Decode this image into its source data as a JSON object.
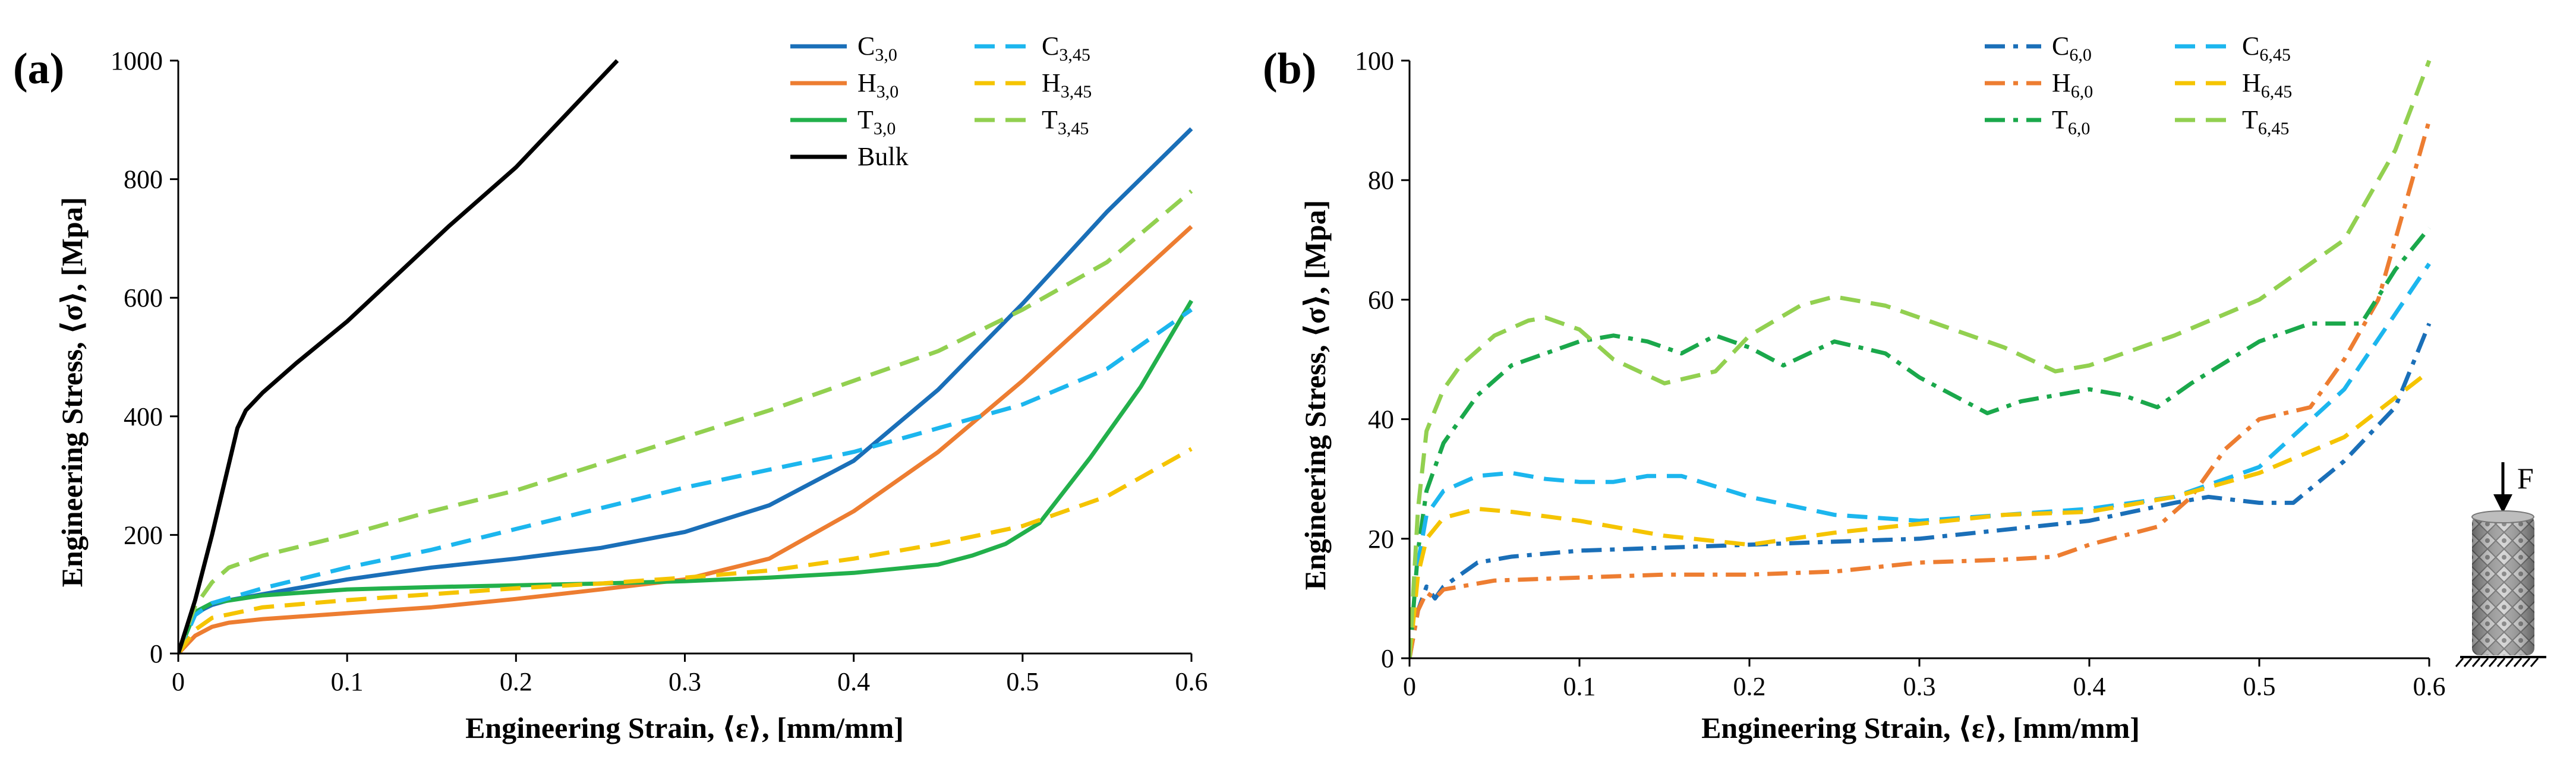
{
  "chart_data": [
    {
      "type": "line",
      "panel_label": "(a)",
      "xlabel": "Engineering Strain, ⟨ε⟩, [mm/mm]",
      "ylabel": "Engineering Stress, ⟨σ⟩, [Mpa]",
      "xlim": [
        0,
        0.6
      ],
      "ylim": [
        0,
        1000
      ],
      "xticks": [
        0,
        0.1,
        0.2,
        0.3,
        0.4,
        0.5,
        0.6
      ],
      "xtick_labels": [
        "0",
        "0.1",
        "0.2",
        "0.3",
        "0.4",
        "0.5",
        "0.6"
      ],
      "yticks": [
        0,
        200,
        400,
        600,
        800,
        1000
      ],
      "ytick_labels": [
        "0",
        "200",
        "400",
        "600",
        "800",
        "1000"
      ],
      "grid": false,
      "legend_position": "top-right",
      "series": [
        {
          "name": "C3,0",
          "label_main": "C",
          "label_sub": "3,0",
          "color": "#1a6fb8",
          "style": "solid",
          "x": [
            0,
            0.005,
            0.01,
            0.015,
            0.02,
            0.03,
            0.05,
            0.1,
            0.15,
            0.2,
            0.25,
            0.3,
            0.35,
            0.4,
            0.45,
            0.5,
            0.55,
            0.6
          ],
          "y": [
            0,
            40,
            65,
            75,
            82,
            90,
            100,
            125,
            145,
            160,
            178,
            205,
            250,
            325,
            445,
            590,
            745,
            885
          ]
        },
        {
          "name": "H3,0",
          "label_main": "H",
          "label_sub": "3,0",
          "color": "#ed7d31",
          "style": "solid",
          "x": [
            0,
            0.01,
            0.02,
            0.03,
            0.05,
            0.1,
            0.15,
            0.2,
            0.25,
            0.3,
            0.35,
            0.4,
            0.45,
            0.5,
            0.55,
            0.6
          ],
          "y": [
            0,
            30,
            45,
            52,
            58,
            68,
            78,
            92,
            108,
            125,
            160,
            240,
            340,
            460,
            590,
            720
          ]
        },
        {
          "name": "T3,0",
          "label_main": "T",
          "label_sub": "3,0",
          "color": "#22b04b",
          "style": "solid",
          "x": [
            0,
            0.01,
            0.02,
            0.05,
            0.1,
            0.15,
            0.2,
            0.25,
            0.3,
            0.35,
            0.4,
            0.45,
            0.47,
            0.49,
            0.51,
            0.54,
            0.57,
            0.6
          ],
          "y": [
            0,
            70,
            85,
            98,
            108,
            112,
            115,
            118,
            122,
            128,
            136,
            150,
            165,
            185,
            220,
            330,
            450,
            595
          ]
        },
        {
          "name": "C3,45",
          "label_main": "C",
          "label_sub": "3,45",
          "color": "#1cb6ee",
          "style": "dashed",
          "x": [
            0,
            0.01,
            0.02,
            0.05,
            0.1,
            0.15,
            0.2,
            0.25,
            0.3,
            0.35,
            0.4,
            0.45,
            0.5,
            0.55,
            0.6
          ],
          "y": [
            0,
            65,
            85,
            110,
            145,
            175,
            210,
            245,
            280,
            310,
            340,
            380,
            420,
            480,
            580
          ]
        },
        {
          "name": "H3,45",
          "label_main": "H",
          "label_sub": "3,45",
          "color": "#f5c400",
          "style": "dashed",
          "x": [
            0,
            0.01,
            0.02,
            0.05,
            0.1,
            0.15,
            0.2,
            0.25,
            0.3,
            0.35,
            0.4,
            0.45,
            0.5,
            0.55,
            0.6
          ],
          "y": [
            0,
            40,
            60,
            78,
            90,
            100,
            110,
            118,
            128,
            140,
            160,
            185,
            215,
            265,
            345
          ]
        },
        {
          "name": "T3,45",
          "label_main": "T",
          "label_sub": "3,45",
          "color": "#92d050",
          "style": "dashed",
          "x": [
            0,
            0.01,
            0.02,
            0.03,
            0.05,
            0.1,
            0.15,
            0.2,
            0.25,
            0.3,
            0.35,
            0.4,
            0.45,
            0.5,
            0.55,
            0.6
          ],
          "y": [
            0,
            80,
            120,
            145,
            165,
            200,
            240,
            275,
            320,
            365,
            410,
            460,
            510,
            580,
            660,
            780
          ]
        },
        {
          "name": "Bulk",
          "label_main": "Bulk",
          "label_sub": "",
          "color": "#000000",
          "style": "solid",
          "x": [
            0,
            0.01,
            0.02,
            0.03,
            0.035,
            0.04,
            0.05,
            0.07,
            0.1,
            0.13,
            0.16,
            0.2,
            0.23,
            0.26
          ],
          "y": [
            0,
            90,
            200,
            320,
            380,
            410,
            440,
            490,
            560,
            640,
            720,
            820,
            910,
            1000
          ]
        }
      ]
    },
    {
      "type": "line",
      "panel_label": "(b)",
      "xlabel": "Engineering Strain, ⟨ε⟩, [mm/mm]",
      "ylabel": "Engineering Stress, ⟨σ⟩, [Mpa]",
      "xlim": [
        0,
        0.6
      ],
      "ylim": [
        0,
        100
      ],
      "xticks": [
        0,
        0.1,
        0.2,
        0.3,
        0.4,
        0.5,
        0.6
      ],
      "xtick_labels": [
        "0",
        "0.1",
        "0.2",
        "0.3",
        "0.4",
        "0.5",
        "0.6"
      ],
      "yticks": [
        0,
        20,
        40,
        60,
        80,
        100
      ],
      "ytick_labels": [
        "0",
        "20",
        "40",
        "60",
        "80",
        "100"
      ],
      "grid": false,
      "legend_position": "top-right",
      "series": [
        {
          "name": "C6,0",
          "label_main": "C",
          "label_sub": "6,0",
          "color": "#1a6fb8",
          "style": "dashdot",
          "x": [
            0,
            0.005,
            0.01,
            0.015,
            0.02,
            0.04,
            0.06,
            0.1,
            0.15,
            0.2,
            0.25,
            0.3,
            0.35,
            0.4,
            0.45,
            0.47,
            0.5,
            0.52,
            0.55,
            0.58,
            0.6
          ],
          "y": [
            0,
            8,
            12,
            10,
            12,
            16,
            17,
            18,
            18.5,
            19,
            19.5,
            20,
            21.5,
            23,
            26,
            27,
            26,
            26,
            33,
            42,
            56
          ]
        },
        {
          "name": "H6,0",
          "label_main": "H",
          "label_sub": "6,0",
          "color": "#ed7d31",
          "style": "dashdot",
          "x": [
            0,
            0.005,
            0.01,
            0.015,
            0.02,
            0.05,
            0.1,
            0.15,
            0.2,
            0.25,
            0.3,
            0.35,
            0.38,
            0.4,
            0.44,
            0.46,
            0.48,
            0.5,
            0.53,
            0.55,
            0.57,
            0.59,
            0.6
          ],
          "y": [
            0,
            8,
            11,
            10,
            11.5,
            13,
            13.5,
            14,
            14,
            14.5,
            16,
            16.5,
            17,
            19,
            22,
            27,
            35,
            40,
            42,
            50,
            60,
            80,
            90
          ]
        },
        {
          "name": "T6,0",
          "label_main": "T",
          "label_sub": "6,0",
          "color": "#1aa84b",
          "style": "dashdot",
          "x": [
            0,
            0.005,
            0.01,
            0.02,
            0.04,
            0.06,
            0.08,
            0.1,
            0.12,
            0.14,
            0.16,
            0.18,
            0.2,
            0.22,
            0.25,
            0.28,
            0.3,
            0.34,
            0.36,
            0.38,
            0.4,
            0.42,
            0.44,
            0.46,
            0.5,
            0.53,
            0.56,
            0.58,
            0.6
          ],
          "y": [
            0,
            18,
            28,
            36,
            44,
            49,
            51,
            53,
            54,
            53,
            51,
            54,
            52,
            49,
            53,
            51,
            47,
            41,
            43,
            44,
            45,
            44,
            42,
            46,
            53,
            56,
            56,
            65,
            72
          ]
        },
        {
          "name": "C6,45",
          "label_main": "C",
          "label_sub": "6,45",
          "color": "#1cb6ee",
          "style": "dashed",
          "x": [
            0,
            0.005,
            0.01,
            0.02,
            0.04,
            0.06,
            0.08,
            0.1,
            0.12,
            0.14,
            0.16,
            0.2,
            0.25,
            0.3,
            0.35,
            0.4,
            0.45,
            0.5,
            0.55,
            0.6
          ],
          "y": [
            0,
            16,
            24,
            28,
            30.5,
            31,
            30,
            29.5,
            29.5,
            30.5,
            30.5,
            27,
            24,
            23,
            24,
            25,
            27,
            32,
            45,
            66
          ]
        },
        {
          "name": "H6,45",
          "label_main": "H",
          "label_sub": "6,45",
          "color": "#f5c400",
          "style": "dashed",
          "x": [
            0,
            0.005,
            0.01,
            0.02,
            0.04,
            0.06,
            0.1,
            0.15,
            0.2,
            0.25,
            0.3,
            0.35,
            0.4,
            0.45,
            0.5,
            0.55,
            0.6
          ],
          "y": [
            0,
            14,
            20,
            23.5,
            25,
            24.5,
            23,
            20.5,
            19,
            21,
            22.5,
            24,
            24.5,
            27,
            31,
            37,
            48
          ]
        },
        {
          "name": "T6,45",
          "label_main": "T",
          "label_sub": "6,45",
          "color": "#92d050",
          "style": "dashed",
          "x": [
            0,
            0.005,
            0.01,
            0.02,
            0.03,
            0.05,
            0.07,
            0.08,
            0.1,
            0.12,
            0.15,
            0.18,
            0.2,
            0.23,
            0.25,
            0.28,
            0.3,
            0.35,
            0.38,
            0.4,
            0.45,
            0.5,
            0.55,
            0.58,
            0.6
          ],
          "y": [
            0,
            25,
            38,
            45,
            49,
            54,
            56.5,
            57,
            55,
            50,
            46,
            48,
            54,
            59,
            60.5,
            59,
            57,
            52,
            48,
            49,
            54,
            60,
            70,
            85,
            100
          ]
        }
      ]
    }
  ],
  "inset": {
    "force_label": "F"
  }
}
